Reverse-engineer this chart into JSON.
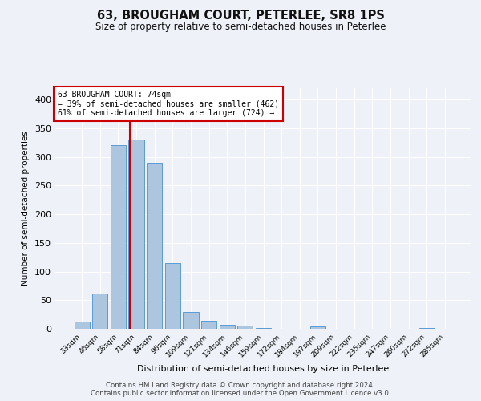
{
  "title1": "63, BROUGHAM COURT, PETERLEE, SR8 1PS",
  "title2": "Size of property relative to semi-detached houses in Peterlee",
  "xlabel": "Distribution of semi-detached houses by size in Peterlee",
  "ylabel": "Number of semi-detached properties",
  "categories": [
    "33sqm",
    "46sqm",
    "58sqm",
    "71sqm",
    "84sqm",
    "96sqm",
    "109sqm",
    "121sqm",
    "134sqm",
    "146sqm",
    "159sqm",
    "172sqm",
    "184sqm",
    "197sqm",
    "209sqm",
    "222sqm",
    "235sqm",
    "247sqm",
    "260sqm",
    "272sqm",
    "285sqm"
  ],
  "values": [
    13,
    62,
    321,
    331,
    290,
    115,
    29,
    14,
    7,
    5,
    2,
    0,
    0,
    4,
    0,
    0,
    0,
    0,
    0,
    2,
    0
  ],
  "bar_color": "#adc6e0",
  "bar_edge_color": "#5b9bd5",
  "annotation_text_line1": "63 BROUGHAM COURT: 74sqm",
  "annotation_text_line2": "← 39% of semi-detached houses are smaller (462)",
  "annotation_text_line3": "61% of semi-detached houses are larger (724) →",
  "vline_color": "#cc0000",
  "annotation_box_edge": "#cc0000",
  "footer1": "Contains HM Land Registry data © Crown copyright and database right 2024.",
  "footer2": "Contains public sector information licensed under the Open Government Licence v3.0.",
  "ylim": [
    0,
    420
  ],
  "background_color": "#eef2f8"
}
